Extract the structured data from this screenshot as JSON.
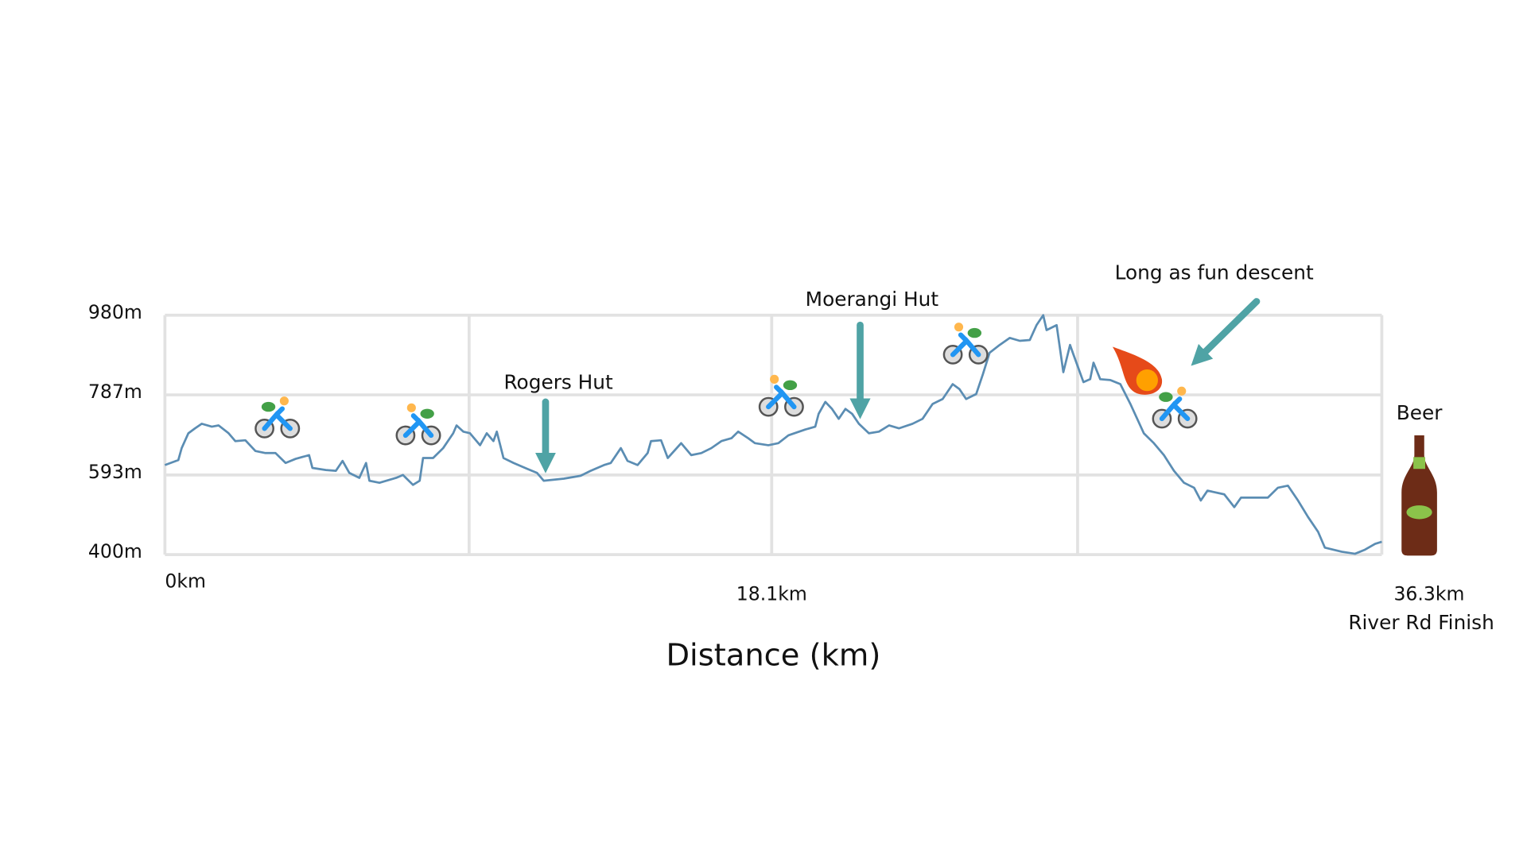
{
  "chart_data": {
    "type": "line",
    "xlabel": "Distance (km)",
    "x": [
      0,
      0.4,
      0.5,
      0.7,
      0.9,
      1.1,
      1.4,
      1.6,
      1.9,
      2.1,
      2.4,
      2.7,
      3.0,
      3.3,
      3.6,
      3.9,
      4.3,
      4.4,
      4.8,
      5.1,
      5.3,
      5.5,
      5.8,
      6.0,
      6.1,
      6.4,
      6.9,
      7.1,
      7.4,
      7.6,
      7.7,
      8.0,
      8.3,
      8.6,
      8.7,
      8.9,
      9.1,
      9.4,
      9.6,
      9.8,
      9.9,
      10.1,
      10.4,
      10.8,
      11.1,
      11.3,
      11.9,
      12.4,
      12.7,
      13.1,
      13.3,
      13.6,
      13.8,
      14.1,
      14.4,
      14.5,
      14.8,
      15.0,
      15.4,
      15.7,
      16.0,
      16.3,
      16.6,
      16.9,
      17.1,
      17.4,
      17.6,
      18.0,
      18.3,
      18.6,
      19.1,
      19.4,
      19.5,
      19.7,
      19.9,
      20.1,
      20.3,
      20.5,
      20.7,
      21.0,
      21.3,
      21.6,
      21.9,
      22.3,
      22.6,
      22.9,
      23.2,
      23.5,
      23.7,
      23.9,
      24.2,
      24.4,
      24.6,
      24.9,
      25.2,
      25.5,
      25.8,
      26.0,
      26.2,
      26.3,
      26.6,
      26.8,
      27.0,
      27.1,
      27.4,
      27.6,
      27.7,
      27.9,
      28.2,
      28.5,
      28.8,
      29.2,
      29.5,
      29.8,
      30.1,
      30.4,
      30.7,
      30.9,
      31.1,
      31.6,
      31.9,
      32.1,
      32.4,
      32.9,
      33.2,
      33.5,
      33.8,
      34.1,
      34.4,
      34.6,
      35.1,
      35.5,
      35.8,
      36.1,
      36.3
    ],
    "values": [
      617,
      629,
      658,
      694,
      706,
      717,
      710,
      713,
      694,
      675,
      677,
      651,
      646,
      646,
      622,
      632,
      641,
      610,
      605,
      603,
      627,
      598,
      586,
      622,
      579,
      574,
      586,
      593,
      569,
      579,
      634,
      634,
      658,
      694,
      713,
      698,
      694,
      665,
      694,
      675,
      698,
      634,
      622,
      608,
      598,
      579,
      584,
      591,
      603,
      617,
      622,
      658,
      627,
      617,
      646,
      675,
      677,
      634,
      670,
      641,
      646,
      658,
      675,
      682,
      698,
      682,
      670,
      665,
      670,
      689,
      703,
      710,
      741,
      770,
      753,
      729,
      753,
      741,
      717,
      694,
      698,
      713,
      706,
      717,
      729,
      765,
      777,
      813,
      801,
      777,
      789,
      837,
      889,
      908,
      925,
      918,
      920,
      956,
      980,
      944,
      956,
      842,
      908,
      885,
      818,
      825,
      865,
      825,
      823,
      813,
      765,
      694,
      670,
      641,
      603,
      574,
      562,
      531,
      555,
      546,
      515,
      538,
      538,
      538,
      562,
      567,
      531,
      491,
      455,
      417,
      407,
      402,
      412,
      426,
      431
    ],
    "color": "#5b8db3",
    "xlim": [
      0,
      36.3
    ],
    "ylim": [
      400,
      980
    ],
    "yticks": [
      {
        "value": 400,
        "label": "400m"
      },
      {
        "value": 593,
        "label": "593m"
      },
      {
        "value": 787,
        "label": "787m"
      },
      {
        "value": 980,
        "label": "980m"
      }
    ],
    "xticks": [
      {
        "value": 0,
        "label": "0km"
      },
      {
        "value": 9.075,
        "label": null
      },
      {
        "value": 18.1,
        "label": "18.1km"
      },
      {
        "value": 27.225,
        "label": null
      },
      {
        "value": 36.3,
        "label": "36.3km"
      }
    ],
    "grid": true,
    "annotations": [
      "Rogers Hut",
      "Moerangi Hut",
      "Long as fun descent",
      "Beer",
      "River Rd Finish"
    ]
  }
}
